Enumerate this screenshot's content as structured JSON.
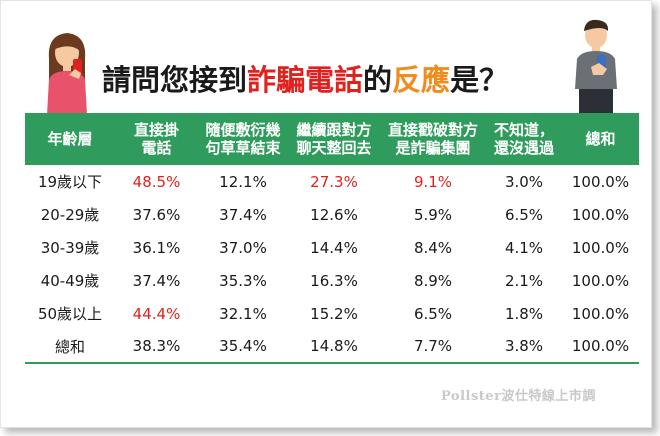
{
  "title": {
    "part1": "請問您接到",
    "part2": "詐騙電話",
    "part3": "的",
    "part4": "反應",
    "part5": "是？"
  },
  "colors": {
    "header_bg": "#2f9b5d",
    "highlight": "#e0221f",
    "title_orange": "#f08c1e"
  },
  "table": {
    "headers": [
      [
        "年齡層",
        ""
      ],
      [
        "直接掛",
        "電話"
      ],
      [
        "隨便敷衍幾",
        "句草草結束"
      ],
      [
        "繼續跟對方",
        "聊天整回去"
      ],
      [
        "直接戳破對方",
        "是詐騙集團"
      ],
      [
        "不知道，",
        "還沒遇過"
      ],
      [
        "總和",
        ""
      ]
    ],
    "rows": [
      [
        "19歲以下",
        "48.5%",
        "12.1%",
        "27.3%",
        "9.1%",
        "3.0%",
        "100.0%"
      ],
      [
        "20-29歲",
        "37.6%",
        "37.4%",
        "12.6%",
        "5.9%",
        "6.5%",
        "100.0%"
      ],
      [
        "30-39歲",
        "36.1%",
        "37.0%",
        "14.4%",
        "8.4%",
        "4.1%",
        "100.0%"
      ],
      [
        "40-49歲",
        "37.4%",
        "35.3%",
        "16.3%",
        "8.9%",
        "2.1%",
        "100.0%"
      ],
      [
        "50歲以上",
        "44.4%",
        "32.1%",
        "15.2%",
        "6.5%",
        "1.8%",
        "100.0%"
      ],
      [
        "總和",
        "38.3%",
        "35.4%",
        "14.8%",
        "7.7%",
        "3.8%",
        "100.0%"
      ]
    ]
  },
  "watermark": "Pollster波仕特線上市調"
}
